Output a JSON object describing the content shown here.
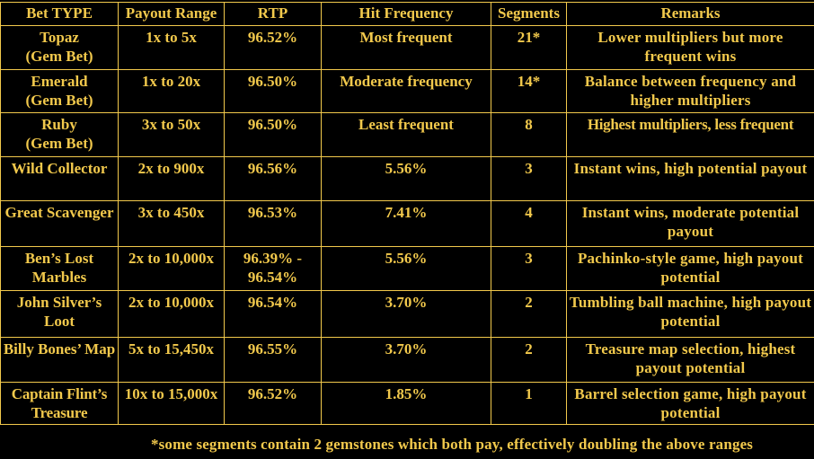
{
  "table": {
    "headers": [
      "Bet TYPE",
      "Payout Range",
      "RTP",
      "Hit Frequency",
      "Segments",
      "Remarks"
    ],
    "rows": [
      {
        "bet_type": "Topaz\n(Gem Bet)",
        "payout_range": "1x to 5x",
        "rtp": "96.52%",
        "hit_frequency": "Most frequent",
        "segments": "21*",
        "remarks": "Lower multipliers but more frequent wins"
      },
      {
        "bet_type": "Emerald\n(Gem Bet)",
        "payout_range": "1x to 20x",
        "rtp": "96.50%",
        "hit_frequency": "Moderate frequency",
        "segments": "14*",
        "remarks": "Balance between frequency and higher multipliers"
      },
      {
        "bet_type": "Ruby\n(Gem Bet)",
        "payout_range": "3x to 50x",
        "rtp": "96.50%",
        "hit_frequency": "Least frequent",
        "segments": "8",
        "remarks": "Highest multipliers, less frequent"
      },
      {
        "bet_type": "Wild Collector",
        "payout_range": "2x to 900x",
        "rtp": "96.56%",
        "hit_frequency": "5.56%",
        "segments": "3",
        "remarks": "Instant wins, high potential payout"
      },
      {
        "bet_type": "Great Scavenger",
        "payout_range": "3x to 450x",
        "rtp": "96.53%",
        "hit_frequency": "7.41%",
        "segments": "4",
        "remarks": "Instant wins, moderate potential payout"
      },
      {
        "bet_type": "Ben’s Lost Marbles",
        "payout_range": "2x to 10,000x",
        "rtp": "96.39% - 96.54%",
        "hit_frequency": "5.56%",
        "segments": "3",
        "remarks": "Pachinko-style game, high payout potential"
      },
      {
        "bet_type": "John Silver’s Loot",
        "payout_range": "2x to 10,000x",
        "rtp": "96.54%",
        "hit_frequency": "3.70%",
        "segments": "2",
        "remarks": "Tumbling ball machine, high payout potential"
      },
      {
        "bet_type": "Billy Bones’ Map",
        "payout_range": "5x to 15,450x",
        "rtp": "96.55%",
        "hit_frequency": "3.70%",
        "segments": "2",
        "remarks": "Treasure map selection, highest payout potential"
      },
      {
        "bet_type": "Captain Flint’s Treasure",
        "payout_range": "10x to 15,000x",
        "rtp": "96.52%",
        "hit_frequency": "1.85%",
        "segments": "1",
        "remarks": "Barrel selection game, high payout potential"
      }
    ]
  },
  "footnote": "*some segments contain 2 gemstones which both pay, effectively doubling the above ranges",
  "colors": {
    "background": "#000000",
    "text": "#f2c94c",
    "border": "#f2c94c"
  }
}
